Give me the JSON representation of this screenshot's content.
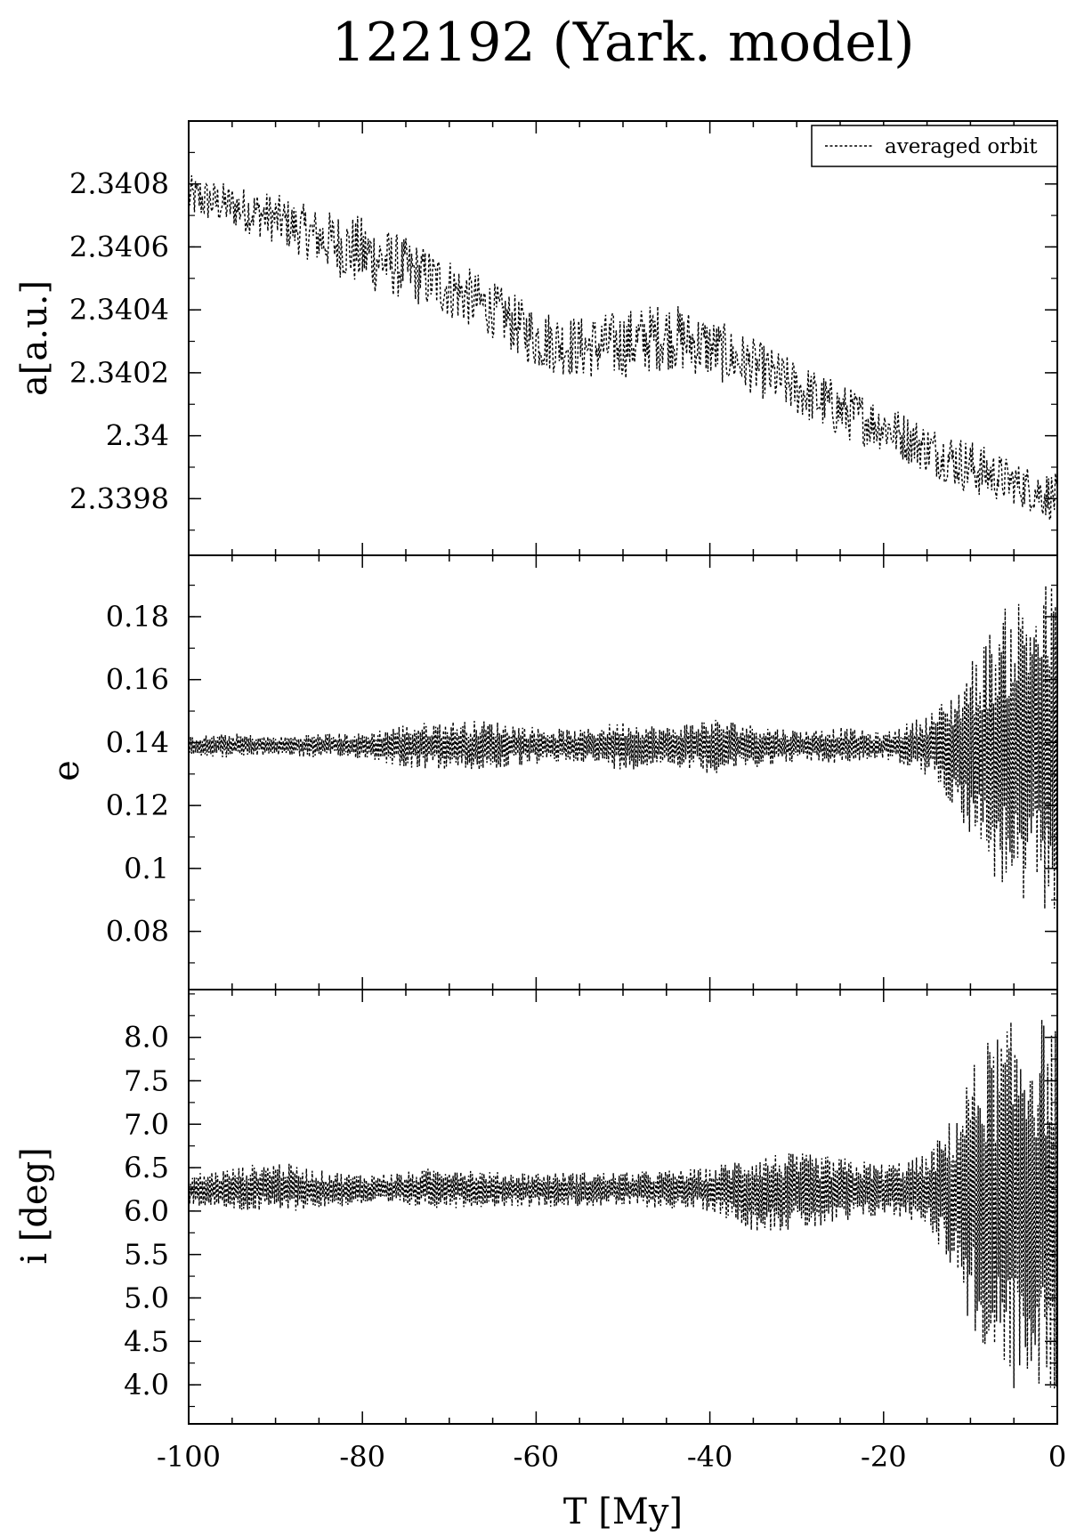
{
  "figure": {
    "title": "122192 (Yark. model)",
    "legend": "averaged orbit"
  },
  "chart_data": [
    {
      "type": "line",
      "panel": "a",
      "ylabel": "a[a.u.]",
      "xlim": [
        -100,
        0
      ],
      "ylim": [
        2.33962,
        2.341
      ],
      "yticks": [
        2.3398,
        2.34,
        2.3402,
        2.3404,
        2.3406,
        2.3408
      ],
      "yticklabels": [
        "2.3398",
        "2.34",
        "2.3402",
        "2.3404",
        "2.3406",
        "2.3408"
      ],
      "legend_position": "top-right",
      "series": [
        {
          "name": "averaged orbit",
          "x": [
            -100,
            -95,
            -90,
            -85,
            -80,
            -75,
            -70,
            -65,
            -60,
            -55,
            -50,
            -45,
            -40,
            -35,
            -30,
            -25,
            -20,
            -15,
            -10,
            -5,
            0
          ],
          "y": [
            2.34076,
            2.34073,
            2.34069,
            2.34063,
            2.34058,
            2.34053,
            2.34047,
            2.3404,
            2.34031,
            2.34028,
            2.34029,
            2.34032,
            2.34028,
            2.34022,
            2.34015,
            2.34008,
            2.34003,
            2.33996,
            2.3399,
            2.33985,
            2.3398
          ],
          "noise": [
            7e-05,
            7e-05,
            8e-05,
            9e-05,
            0.00012,
            0.0001,
            0.0001,
            9e-05,
            0.0001,
            0.0001,
            0.00011,
            0.00011,
            0.0001,
            9e-05,
            9e-05,
            9e-05,
            8e-05,
            8e-05,
            9e-05,
            7e-05,
            8e-05
          ]
        }
      ]
    },
    {
      "type": "line",
      "panel": "e",
      "ylabel": "e",
      "xlim": [
        -100,
        0
      ],
      "ylim": [
        0.0615,
        0.1995
      ],
      "yticks": [
        0.08,
        0.1,
        0.12,
        0.14,
        0.16,
        0.18
      ],
      "yticklabels": [
        "0.08",
        "0.1",
        "0.12",
        "0.14",
        "0.16",
        "0.18"
      ],
      "series": [
        {
          "name": "averaged orbit",
          "x": [
            -100,
            -95,
            -90,
            -85,
            -80,
            -75,
            -70,
            -65,
            -60,
            -55,
            -50,
            -45,
            -40,
            -35,
            -30,
            -25,
            -20,
            -15,
            -12,
            -10,
            -8,
            -6,
            -4,
            -2,
            0
          ],
          "y": [
            0.139,
            0.139,
            0.139,
            0.139,
            0.139,
            0.139,
            0.139,
            0.139,
            0.139,
            0.139,
            0.139,
            0.139,
            0.139,
            0.139,
            0.139,
            0.139,
            0.139,
            0.139,
            0.138,
            0.138,
            0.137,
            0.137,
            0.137,
            0.138,
            0.139
          ],
          "amplitude": [
            0.003,
            0.004,
            0.003,
            0.004,
            0.004,
            0.007,
            0.008,
            0.008,
            0.006,
            0.005,
            0.008,
            0.006,
            0.009,
            0.007,
            0.005,
            0.006,
            0.004,
            0.01,
            0.018,
            0.028,
            0.038,
            0.046,
            0.052,
            0.054,
            0.052
          ]
        }
      ]
    },
    {
      "type": "line",
      "panel": "i",
      "ylabel": "i [deg]",
      "xlim": [
        -100,
        0
      ],
      "ylim": [
        3.55,
        8.55
      ],
      "yticks": [
        4.0,
        4.5,
        5.0,
        5.5,
        6.0,
        6.5,
        7.0,
        7.5,
        8.0
      ],
      "yticklabels": [
        "4.0",
        "4.5",
        "5.0",
        "5.5",
        "6.0",
        "6.5",
        "7.0",
        "7.5",
        "8.0"
      ],
      "xticks": [
        -100,
        -80,
        -60,
        -40,
        -20,
        0
      ],
      "xticklabels": [
        "-100",
        "-80",
        "-60",
        "-40",
        "-20",
        "0"
      ],
      "xlabel": "T [My]",
      "series": [
        {
          "name": "averaged orbit",
          "x": [
            -100,
            -95,
            -90,
            -85,
            -80,
            -75,
            -70,
            -65,
            -60,
            -55,
            -50,
            -45,
            -40,
            -35,
            -30,
            -25,
            -20,
            -15,
            -12,
            -10,
            -8,
            -6,
            -4,
            -2,
            0
          ],
          "y": [
            6.25,
            6.25,
            6.28,
            6.25,
            6.25,
            6.25,
            6.28,
            6.25,
            6.25,
            6.25,
            6.25,
            6.25,
            6.25,
            6.22,
            6.22,
            6.22,
            6.25,
            6.25,
            6.2,
            6.15,
            6.1,
            6.05,
            6.05,
            6.05,
            6.05
          ],
          "amplitude": [
            0.18,
            0.25,
            0.3,
            0.22,
            0.18,
            0.2,
            0.25,
            0.2,
            0.2,
            0.2,
            0.2,
            0.22,
            0.25,
            0.45,
            0.45,
            0.4,
            0.3,
            0.4,
            0.9,
            1.5,
            1.9,
            2.1,
            2.2,
            2.2,
            2.2
          ]
        }
      ]
    }
  ]
}
